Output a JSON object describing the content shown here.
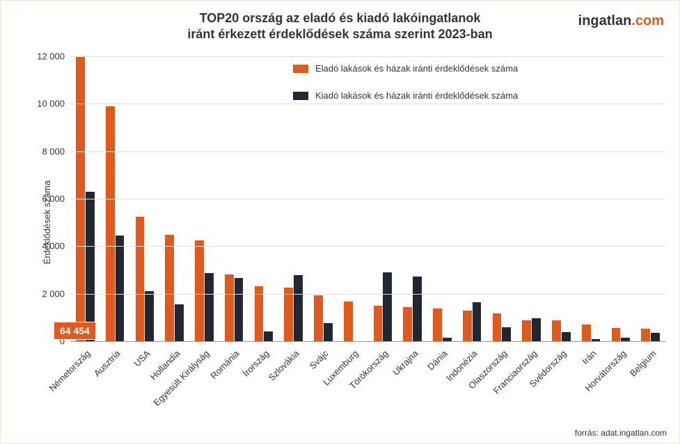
{
  "chart": {
    "type": "bar",
    "title_line1": "TOP20 ország az eladó és kiadó lakóingatlanok",
    "title_line2": "iránt érkezett érdeklődések száma szerint 2023-ban",
    "title_fontsize": 18,
    "title_color": "#333333",
    "ylabel": "Érdeklődések száma",
    "ylabel_fontsize": 13,
    "legend": {
      "fontsize": 13,
      "items": [
        {
          "label": "Eladó lakások és házak iránti érdeklődések száma",
          "color": "#e2591b"
        },
        {
          "label": "Kiadó lakások és házak iránti érdeklődések száma",
          "color": "#212834"
        }
      ]
    },
    "ymin": 0,
    "ymax": 12000,
    "ytick_step": 2000,
    "ytick_labels": [
      "0",
      "2 000",
      "4 000",
      "6 000",
      "8 000",
      "10 000",
      "12 000"
    ],
    "ytick_fontsize": 13,
    "grid_color": "#e0e0e0",
    "background_color": "#ffffff",
    "bar_width_rel": 0.3,
    "bar_gap_rel": 0.02,
    "categories": [
      "Németország",
      "Ausztria",
      "USA",
      "Hollandia",
      "Egyesült Királyság",
      "Románia",
      "Írország",
      "Szlovákia",
      "Svájc",
      "Luxemburg",
      "Törökország",
      "Ukrajna",
      "Dánia",
      "Indonézia",
      "Olaszország",
      "Franciaország",
      "Svédország",
      "Irán",
      "Horvátország",
      "Belgium"
    ],
    "xlabel_fontsize": 13,
    "series": [
      {
        "name": "elado",
        "color": "#e2591b",
        "values": [
          12000,
          9880,
          5250,
          4490,
          4240,
          2800,
          2300,
          2240,
          1920,
          1680,
          1500,
          1440,
          1380,
          1280,
          1160,
          880,
          880,
          700,
          560,
          540
        ]
      },
      {
        "name": "kiado",
        "color": "#212834",
        "values": [
          6300,
          4440,
          2100,
          1560,
          2880,
          2660,
          420,
          2780,
          760,
          0,
          2900,
          2720,
          140,
          1640,
          600,
          980,
          380,
          80,
          160,
          340
        ]
      }
    ],
    "callout": {
      "text": "64 454",
      "bg": "#e2591b",
      "color": "#ffffff",
      "fontsize": 14
    },
    "source": "forrás: adat.ingatlan.com",
    "source_fontsize": 12,
    "logo": {
      "text1": "ingatlan",
      "text2": ".com",
      "fontsize": 20
    }
  }
}
